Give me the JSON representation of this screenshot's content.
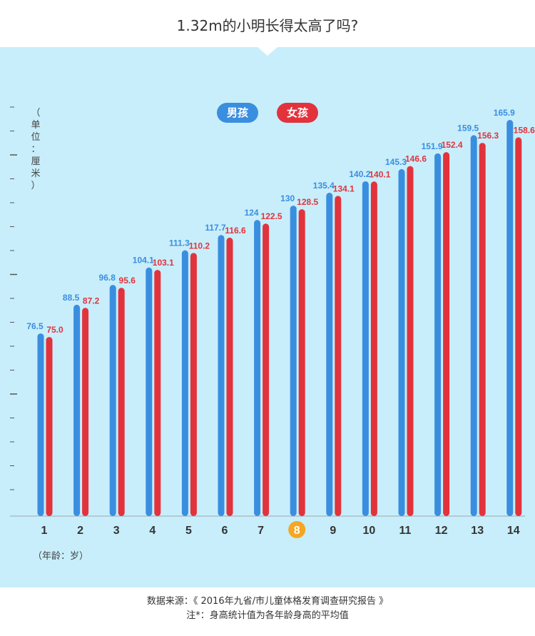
{
  "header": {
    "title": "1.32m的小明长得太高了吗?"
  },
  "legend": [
    {
      "label": "男孩",
      "color": "#3a8ee0"
    },
    {
      "label": "女孩",
      "color": "#e2333c"
    }
  ],
  "unit_label": "（单位：厘米）",
  "xaxis_title": "（年龄：岁）",
  "highlight_category": "8",
  "highlight_color": "#f5a623",
  "footer": {
    "source": "数据来源：《 2016年九省/市儿童体格发育调查研究报告 》",
    "note": "注*：身高统计值为各年龄身高的平均值"
  },
  "chart_data": {
    "type": "bar",
    "title": "1.32m的小明长得太高了吗?",
    "xlabel": "（年龄：岁）",
    "ylabel": "（单位：厘米）",
    "categories": [
      "1",
      "2",
      "3",
      "4",
      "5",
      "6",
      "7",
      "8",
      "9",
      "10",
      "11",
      "12",
      "13",
      "14"
    ],
    "series": [
      {
        "name": "男孩",
        "color": "#3a8ee0",
        "values": [
          76.5,
          88.5,
          96.8,
          104.1,
          111.3,
          117.7,
          124,
          130,
          135.4,
          140.2,
          145.3,
          151.9,
          159.5,
          165.9
        ]
      },
      {
        "name": "女孩",
        "color": "#e2333c",
        "values": [
          75.0,
          87.2,
          95.6,
          103.1,
          110.2,
          116.6,
          122.5,
          128.5,
          134.1,
          140.1,
          146.6,
          152.4,
          156.3,
          158.6
        ]
      }
    ],
    "value_labels": {
      "男孩": [
        "76.5",
        "88.5",
        "96.8",
        "104.1",
        "111.3",
        "117.7",
        "124",
        "130",
        "135.4",
        "140.2",
        "145.3",
        "151.9",
        "159.5",
        "165.9"
      ],
      "女孩": [
        "75.0",
        "87.2",
        "95.6",
        "103.1",
        "110.2",
        "116.6",
        "122.5",
        "128.5",
        "134.1",
        "140.1",
        "146.6",
        "152.4",
        "156.3",
        "158.6"
      ]
    },
    "ylim": [
      0,
      165.9
    ],
    "grid": false,
    "legend_position": "top-center"
  }
}
